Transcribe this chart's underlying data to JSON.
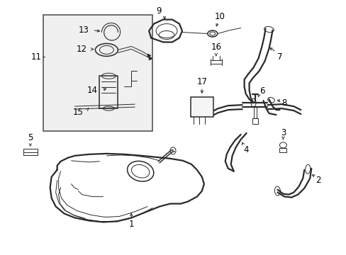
{
  "bg_color": "#ffffff",
  "line_color": "#2a2a2a",
  "lw_thin": 0.7,
  "lw_med": 1.1,
  "lw_thick": 1.6,
  "fontsize": 8.5,
  "fig_width": 4.89,
  "fig_height": 3.6,
  "dpi": 100
}
